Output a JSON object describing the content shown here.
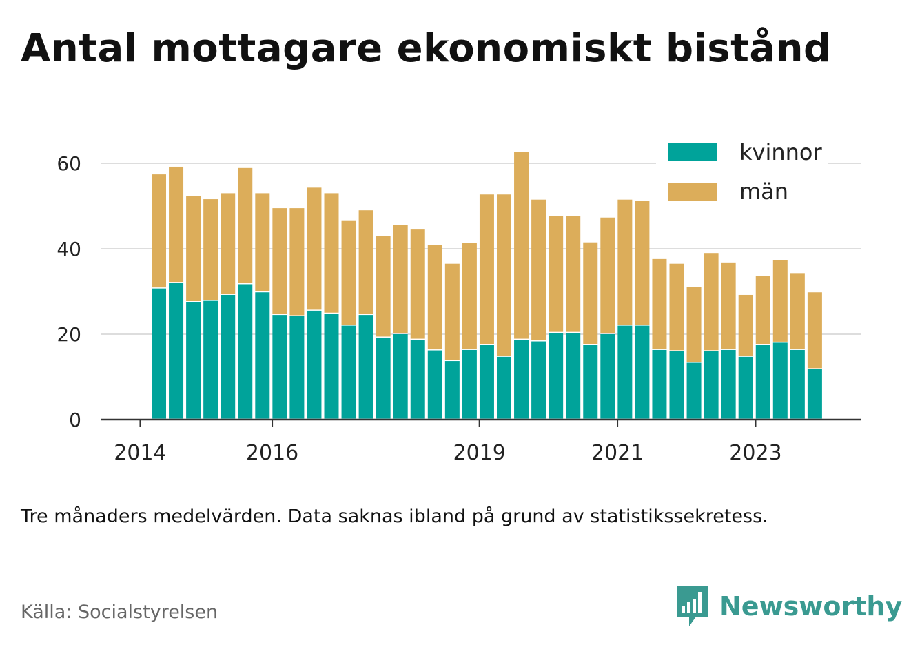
{
  "title": "Antal mottagare ekonomiskt bistånd",
  "note": "Tre månaders medelvärden. Data saknas ibland på grund av statistikssekretess.",
  "source": "Källa: Socialstyrelsen",
  "brand": "Newsworthy",
  "colors": {
    "kvinnor": "#00a39a",
    "man": "#dcad5a",
    "brand": "#3a9a91"
  },
  "chart_data": {
    "type": "bar",
    "stacked": true,
    "title": "Antal mottagare ekonomiskt bistånd",
    "xlabel": "",
    "ylabel": "",
    "ylim": [
      0,
      60
    ],
    "yticks": [
      0,
      20,
      40,
      60
    ],
    "grid": true,
    "legend_position": "top-right",
    "xtick_labels": [
      "2014",
      "2016",
      "2019",
      "2021",
      "2023"
    ],
    "categories": [
      "2014-Q2",
      "2014-Q3",
      "2014-Q4",
      "2015-Q1",
      "2015-Q2",
      "2015-Q3",
      "2015-Q4",
      "2016-Q1",
      "2016-Q2",
      "2016-Q3",
      "2016-Q4",
      "2017-Q1",
      "2017-Q2",
      "2017-Q3",
      "2017-Q4",
      "2018-Q1",
      "2018-Q2",
      "2018-Q3",
      "2018-Q4",
      "2019-Q1",
      "2019-Q2",
      "2019-Q3",
      "2019-Q4",
      "2020-Q1",
      "2020-Q2",
      "2020-Q3",
      "2020-Q4",
      "2021-Q1",
      "2021-Q2",
      "2021-Q3",
      "2021-Q4",
      "2022-Q1",
      "2022-Q2",
      "2022-Q3",
      "2022-Q4",
      "2023-Q1",
      "2023-Q2",
      "2023-Q3",
      "2023-Q4"
    ],
    "series": [
      {
        "name": "kvinnor",
        "values": [
          30.7,
          32.0,
          27.5,
          27.8,
          29.2,
          31.7,
          29.8,
          24.5,
          24.2,
          25.5,
          24.8,
          22.0,
          24.5,
          19.2,
          20.0,
          18.7,
          16.2,
          13.7,
          16.3,
          17.5,
          14.7,
          18.7,
          18.3,
          20.3,
          20.3,
          17.5,
          20.0,
          22.0,
          22.0,
          16.3,
          16.0,
          13.3,
          16.0,
          16.3,
          14.7,
          17.5,
          18.0,
          16.3,
          11.8
        ]
      },
      {
        "name": "män",
        "values": [
          26.7,
          27.2,
          24.8,
          23.8,
          23.8,
          27.2,
          23.2,
          25.0,
          25.3,
          28.8,
          28.2,
          24.5,
          24.5,
          23.8,
          25.5,
          25.8,
          24.7,
          22.8,
          25.0,
          35.2,
          38.0,
          44.0,
          33.2,
          27.3,
          27.3,
          24.0,
          27.3,
          29.5,
          29.2,
          21.3,
          20.5,
          17.8,
          23.0,
          20.5,
          14.5,
          16.2,
          19.3,
          18.0,
          18.0
        ]
      }
    ]
  }
}
